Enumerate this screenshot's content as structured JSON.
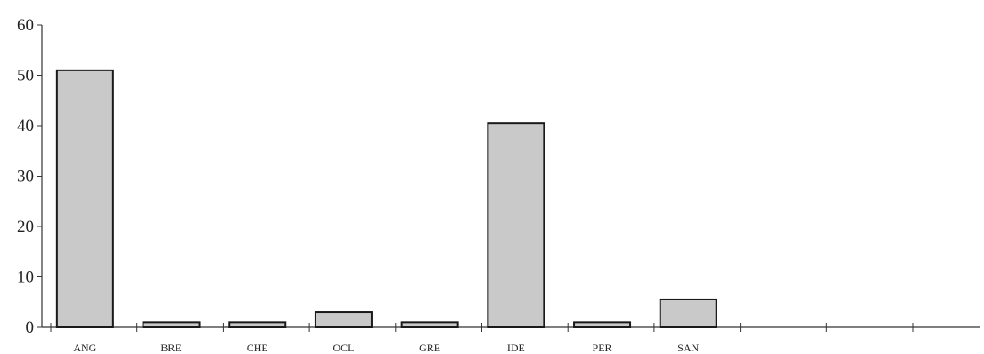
{
  "chart_data": {
    "type": "bar",
    "title": "",
    "xlabel": "",
    "ylabel": "",
    "categories": [
      "ANG",
      "BRE",
      "CHE",
      "OCL",
      "GRE",
      "IDE",
      "PER",
      "SAN",
      "",
      "",
      ""
    ],
    "values": [
      51,
      1,
      1,
      3,
      1,
      40.5,
      1,
      5.5,
      null,
      null,
      null
    ],
    "ylim": [
      0,
      60
    ],
    "yticks": [
      0,
      10,
      20,
      30,
      40,
      50,
      60
    ],
    "grid": false,
    "bar_color": "#c9c9c9",
    "bar_edge_color": "#1a1a1a"
  }
}
